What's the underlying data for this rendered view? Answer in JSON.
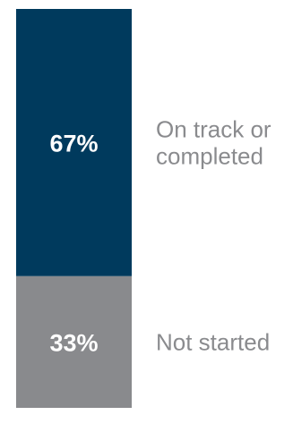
{
  "chart_data": {
    "type": "bar",
    "stacked": true,
    "orientation": "vertical",
    "unit": "%",
    "segments": [
      {
        "name": "On track or completed",
        "value": 67,
        "value_label": "67%",
        "label_lines": [
          "On track or",
          "completed"
        ],
        "color": "#003a5d"
      },
      {
        "name": "Not started",
        "value": 33,
        "value_label": "33%",
        "label_lines": [
          "Not started"
        ],
        "color": "#898a8d"
      }
    ],
    "value_label_color": "#ffffff",
    "category_label_color": "#8a8b8e",
    "ylim": [
      0,
      100
    ]
  }
}
